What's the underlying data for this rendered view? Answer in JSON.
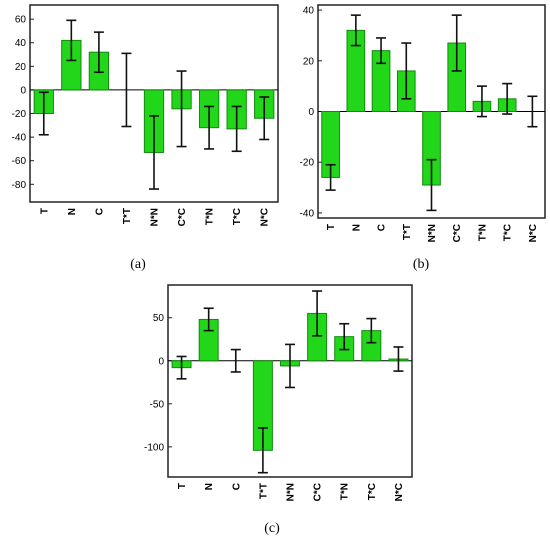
{
  "figure": {
    "bar_color": "#22d61a",
    "bar_edge_color": "#138a0e"
  },
  "chart_data": [
    {
      "type": "bar",
      "panel_label": "(a)",
      "title": "",
      "xlabel": "",
      "ylabel": "",
      "categories": [
        "T",
        "N",
        "C",
        "T*T",
        "N*N",
        "C*C",
        "T*N",
        "T*C",
        "N*C"
      ],
      "values": [
        -20,
        42,
        32,
        0,
        -53,
        -16,
        -32,
        -33,
        -24
      ],
      "error": [
        18,
        17,
        17,
        31,
        31,
        32,
        18,
        19,
        18
      ],
      "ylim": [
        -95,
        72
      ],
      "yticks": [
        60,
        40,
        20,
        0,
        -20,
        -40,
        -60,
        -80
      ],
      "grid": false,
      "legend": "none"
    },
    {
      "type": "bar",
      "panel_label": "(b)",
      "title": "",
      "xlabel": "",
      "ylabel": "",
      "categories": [
        "T",
        "N",
        "C",
        "T*T",
        "N*N",
        "C*C",
        "T*N",
        "T*C",
        "N*C"
      ],
      "values": [
        -26,
        32,
        24,
        16,
        -29,
        27,
        4,
        5,
        0
      ],
      "error": [
        5,
        6,
        5,
        11,
        10,
        11,
        6,
        6,
        6
      ],
      "ylim": [
        -42,
        42
      ],
      "yticks": [
        40,
        20,
        0,
        -20,
        -40
      ],
      "grid": false,
      "legend": "none"
    },
    {
      "type": "bar",
      "panel_label": "(c)",
      "title": "",
      "xlabel": "",
      "ylabel": "",
      "categories": [
        "T",
        "N",
        "C",
        "T*T",
        "N*N",
        "C*C",
        "T*N",
        "T*C",
        "N*C"
      ],
      "values": [
        -8,
        48,
        0,
        -104,
        -6,
        55,
        28,
        35,
        2
      ],
      "error": [
        13,
        13,
        13,
        26,
        25,
        26,
        15,
        14,
        14
      ],
      "ylim": [
        -135,
        88
      ],
      "yticks": [
        50,
        0,
        -50,
        -100
      ],
      "grid": false,
      "legend": "none"
    }
  ]
}
